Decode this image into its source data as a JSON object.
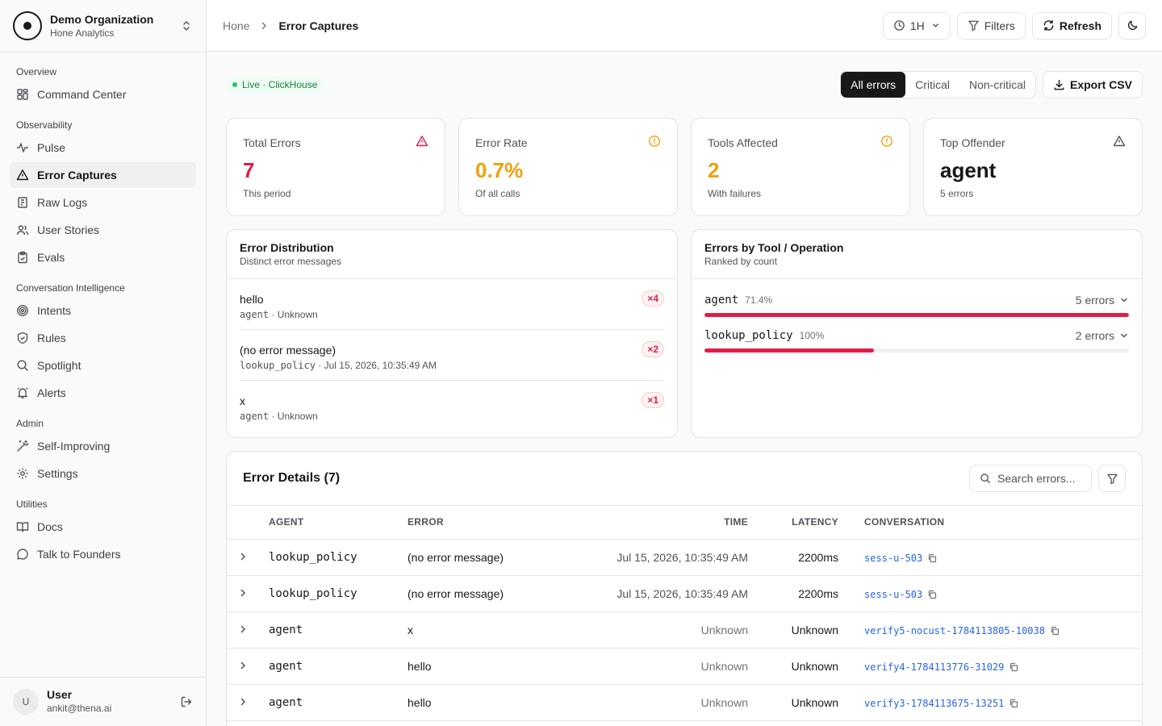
{
  "org": {
    "name": "Demo Organization",
    "subtitle": "Hone Analytics"
  },
  "nav": {
    "sections": [
      {
        "heading": "Overview",
        "items": [
          {
            "label": "Command Center",
            "icon": "grid-icon"
          }
        ]
      },
      {
        "heading": "Observability",
        "items": [
          {
            "label": "Pulse",
            "icon": "pulse-icon"
          },
          {
            "label": "Error Captures",
            "icon": "alert-triangle-icon",
            "active": true
          },
          {
            "label": "Raw Logs",
            "icon": "logs-icon"
          },
          {
            "label": "User Stories",
            "icon": "users-icon"
          },
          {
            "label": "Evals",
            "icon": "clipboard-icon"
          }
        ]
      },
      {
        "heading": "Conversation Intelligence",
        "items": [
          {
            "label": "Intents",
            "icon": "target-icon"
          },
          {
            "label": "Rules",
            "icon": "shield-icon"
          },
          {
            "label": "Spotlight",
            "icon": "search-icon"
          },
          {
            "label": "Alerts",
            "icon": "bell-icon"
          }
        ]
      },
      {
        "heading": "Admin",
        "items": [
          {
            "label": "Self-Improving",
            "icon": "wand-icon"
          },
          {
            "label": "Settings",
            "icon": "gear-icon"
          }
        ]
      },
      {
        "heading": "Utilities",
        "items": [
          {
            "label": "Docs",
            "icon": "book-icon"
          },
          {
            "label": "Talk to Founders",
            "icon": "chat-icon"
          }
        ]
      }
    ]
  },
  "user": {
    "initial": "U",
    "name": "User",
    "email": "ankit@thena.ai"
  },
  "header": {
    "breadcrumb": {
      "home": "Hone",
      "current": "Error Captures"
    },
    "time_range": "1H",
    "filters_label": "Filters",
    "refresh_label": "Refresh"
  },
  "toolbar": {
    "live_label": "Live · ClickHouse",
    "segments": [
      "All errors",
      "Critical",
      "Non-critical"
    ],
    "active_segment": "All errors",
    "export_label": "Export CSV"
  },
  "stats": [
    {
      "label": "Total Errors",
      "value": "7",
      "sub": "This period",
      "color": "#e11d48",
      "icon": "alert-triangle-icon"
    },
    {
      "label": "Error Rate",
      "value": "0.7%",
      "sub": "Of all calls",
      "color": "#f59e0b",
      "icon": "alert-circle-icon"
    },
    {
      "label": "Tools Affected",
      "value": "2",
      "sub": "With failures",
      "color": "#f59e0b",
      "icon": "alert-circle-icon"
    },
    {
      "label": "Top Offender",
      "value": "agent",
      "sub": "5 errors",
      "color": "#18181b",
      "icon": "alert-triangle-icon"
    }
  ],
  "distribution": {
    "title": "Error Distribution",
    "subtitle": "Distinct error messages",
    "items": [
      {
        "message": "hello",
        "tool": "agent",
        "when": "Unknown",
        "count": "×4"
      },
      {
        "message": "(no error message)",
        "tool": "lookup_policy",
        "when": "Jul 15, 2026, 10:35:49 AM",
        "count": "×2"
      },
      {
        "message": "x",
        "tool": "agent",
        "when": "Unknown",
        "count": "×1"
      }
    ]
  },
  "by_tool": {
    "title": "Errors by Tool / Operation",
    "subtitle": "Ranked by count",
    "items": [
      {
        "name": "agent",
        "pct": "71.4%",
        "count": "5 errors",
        "share": 1.0
      },
      {
        "name": "lookup_policy",
        "pct": "100%",
        "count": "2 errors",
        "share": 0.4
      }
    ]
  },
  "details": {
    "title": "Error Details (7)",
    "search_placeholder": "Search errors...",
    "columns": {
      "agent": "AGENT",
      "error": "ERROR",
      "time": "TIME",
      "latency": "LATENCY",
      "conversation": "CONVERSATION"
    },
    "rows": [
      {
        "agent": "lookup_policy",
        "error": "(no error message)",
        "time": "Jul 15, 2026, 10:35:49 AM",
        "latency": "2200ms",
        "conversation": "sess-u-503"
      },
      {
        "agent": "lookup_policy",
        "error": "(no error message)",
        "time": "Jul 15, 2026, 10:35:49 AM",
        "latency": "2200ms",
        "conversation": "sess-u-503"
      },
      {
        "agent": "agent",
        "error": "x",
        "time": "Unknown",
        "latency": "Unknown",
        "conversation": "verify5-nocust-1784113805-10038"
      },
      {
        "agent": "agent",
        "error": "hello",
        "time": "Unknown",
        "latency": "Unknown",
        "conversation": "verify4-1784113776-31029"
      },
      {
        "agent": "agent",
        "error": "hello",
        "time": "Unknown",
        "latency": "Unknown",
        "conversation": "verify3-1784113675-13251"
      }
    ]
  }
}
